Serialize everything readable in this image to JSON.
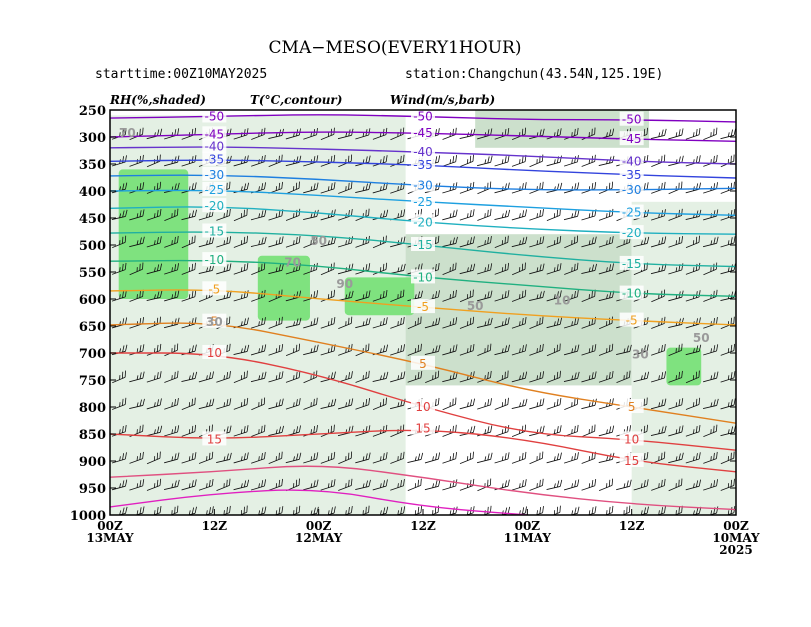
{
  "chart_data": {
    "type": "meteogram",
    "title": "CMA−MESO(EVERY1HOUR)",
    "starttime": "starttime:00Z10MAY2025",
    "station": "station:Changchun(43.54N,125.19E)",
    "variable_labels": [
      "RH(%,shaded)",
      "T(°C,contour)",
      "Wind(m/s,barb)"
    ],
    "y_axis": {
      "levels": [
        250,
        300,
        350,
        400,
        450,
        500,
        550,
        600,
        650,
        700,
        750,
        800,
        850,
        900,
        950,
        1000
      ],
      "tick_labels": [
        "250",
        "300",
        "350",
        "400",
        "450",
        "500",
        "550",
        "600",
        "650",
        "700",
        "750",
        "800",
        "850",
        "900",
        "950",
        "1000"
      ],
      "range": [
        250,
        1000
      ],
      "inverted": true
    },
    "x_axis": {
      "range_hours": [
        0,
        72
      ],
      "reversed": true,
      "ticks": [
        {
          "hour": 72,
          "line1": "00Z",
          "line2": "13MAY",
          "line3": ""
        },
        {
          "hour": 60,
          "line1": "12Z",
          "line2": "",
          "line3": ""
        },
        {
          "hour": 48,
          "line1": "00Z",
          "line2": "12MAY",
          "line3": ""
        },
        {
          "hour": 36,
          "line1": "12Z",
          "line2": "",
          "line3": ""
        },
        {
          "hour": 24,
          "line1": "00Z",
          "line2": "11MAY",
          "line3": ""
        },
        {
          "hour": 12,
          "line1": "12Z",
          "line2": "",
          "line3": ""
        },
        {
          "hour": 0,
          "line1": "00Z",
          "line2": "10MAY",
          "line3": "2025"
        }
      ]
    },
    "rh_shading": {
      "light_color": "#e3efe3",
      "mid_color": "#c9dec9",
      "gray_color": "#a9aea9",
      "high_color": "#7fe27f",
      "light_patches": [
        {
          "hours": [
            72,
            38
          ],
          "levels": [
            260,
            1000
          ]
        },
        {
          "hours": [
            38,
            12
          ],
          "levels": [
            480,
            760
          ]
        },
        {
          "hours": [
            12,
            0
          ],
          "levels": [
            420,
            1000
          ]
        },
        {
          "hours": [
            30,
            10
          ],
          "levels": [
            250,
            320
          ]
        }
      ],
      "high_patches": [
        {
          "hours": [
            71,
            63
          ],
          "levels": [
            360,
            600
          ]
        },
        {
          "hours": [
            55,
            49
          ],
          "levels": [
            520,
            640
          ]
        },
        {
          "hours": [
            45,
            37
          ],
          "levels": [
            560,
            630
          ]
        },
        {
          "hours": [
            8,
            4
          ],
          "levels": [
            690,
            760
          ]
        }
      ]
    },
    "temperature_contours": [
      {
        "label": "-50",
        "color": "#8000c0",
        "points": [
          [
            72,
            265
          ],
          [
            60,
            262
          ],
          [
            48,
            258
          ],
          [
            36,
            262
          ],
          [
            24,
            268
          ],
          [
            12,
            268
          ],
          [
            0,
            272
          ]
        ]
      },
      {
        "label": "-45",
        "color": "#8000c0",
        "points": [
          [
            72,
            300
          ],
          [
            60,
            295
          ],
          [
            48,
            290
          ],
          [
            36,
            293
          ],
          [
            24,
            298
          ],
          [
            12,
            304
          ],
          [
            0,
            308
          ]
        ]
      },
      {
        "label": "-40",
        "color": "#6633cc",
        "points": [
          [
            72,
            320
          ],
          [
            60,
            318
          ],
          [
            48,
            322
          ],
          [
            36,
            328
          ],
          [
            24,
            335
          ],
          [
            12,
            345
          ],
          [
            0,
            350
          ]
        ]
      },
      {
        "label": "-35",
        "color": "#3344dd",
        "points": [
          [
            72,
            345
          ],
          [
            60,
            342
          ],
          [
            48,
            346
          ],
          [
            36,
            352
          ],
          [
            24,
            362
          ],
          [
            12,
            370
          ],
          [
            0,
            376
          ]
        ]
      },
      {
        "label": "-30",
        "color": "#1e7fe0",
        "points": [
          [
            72,
            372
          ],
          [
            60,
            370
          ],
          [
            48,
            378
          ],
          [
            36,
            390
          ],
          [
            24,
            398
          ],
          [
            12,
            398
          ],
          [
            0,
            395
          ]
        ]
      },
      {
        "label": "-25",
        "color": "#1ea0e0",
        "points": [
          [
            72,
            400
          ],
          [
            60,
            398
          ],
          [
            48,
            408
          ],
          [
            36,
            420
          ],
          [
            24,
            430
          ],
          [
            12,
            440
          ],
          [
            0,
            445
          ]
        ]
      },
      {
        "label": "-20",
        "color": "#20b0c0",
        "points": [
          [
            72,
            432
          ],
          [
            60,
            428
          ],
          [
            48,
            440
          ],
          [
            36,
            458
          ],
          [
            24,
            470
          ],
          [
            12,
            478
          ],
          [
            0,
            480
          ]
        ]
      },
      {
        "label": "-15",
        "color": "#20b0a0",
        "points": [
          [
            72,
            478
          ],
          [
            60,
            475
          ],
          [
            48,
            482
          ],
          [
            36,
            500
          ],
          [
            24,
            520
          ],
          [
            12,
            535
          ],
          [
            0,
            540
          ]
        ]
      },
      {
        "label": "-10",
        "color": "#20b080",
        "points": [
          [
            72,
            530
          ],
          [
            60,
            528
          ],
          [
            48,
            538
          ],
          [
            36,
            560
          ],
          [
            24,
            575
          ],
          [
            12,
            590
          ],
          [
            0,
            595
          ]
        ]
      },
      {
        "label": "-5",
        "color": "#f0a020",
        "points": [
          [
            72,
            585
          ],
          [
            60,
            582
          ],
          [
            48,
            600
          ],
          [
            36,
            615
          ],
          [
            24,
            630
          ],
          [
            12,
            640
          ],
          [
            0,
            648
          ]
        ]
      },
      {
        "label": "5",
        "color": "#e08020",
        "points": [
          [
            72,
            648
          ],
          [
            60,
            642
          ],
          [
            48,
            680
          ],
          [
            36,
            720
          ],
          [
            24,
            770
          ],
          [
            12,
            800
          ],
          [
            0,
            830
          ]
        ]
      },
      {
        "label": "10",
        "color": "#e04040",
        "points": [
          [
            72,
            700
          ],
          [
            60,
            700
          ],
          [
            48,
            740
          ],
          [
            36,
            800
          ],
          [
            24,
            850
          ],
          [
            12,
            860
          ],
          [
            0,
            880
          ]
        ]
      },
      {
        "label": "15",
        "color": "#e04040",
        "points": [
          [
            72,
            850
          ],
          [
            60,
            860
          ],
          [
            48,
            850
          ],
          [
            36,
            840
          ],
          [
            24,
            860
          ],
          [
            12,
            900
          ],
          [
            0,
            920
          ]
        ]
      },
      {
        "label": "",
        "color": "#e05080",
        "points": [
          [
            72,
            930
          ],
          [
            60,
            920
          ],
          [
            48,
            905
          ],
          [
            36,
            930
          ],
          [
            24,
            960
          ],
          [
            12,
            980
          ],
          [
            0,
            990
          ]
        ]
      },
      {
        "label": "",
        "color": "#e020c0",
        "points": [
          [
            72,
            985
          ],
          [
            60,
            960
          ],
          [
            48,
            950
          ],
          [
            36,
            985
          ],
          [
            24,
            1000
          ]
        ]
      }
    ],
    "rh_labels": [
      {
        "label": "70",
        "hour": 70,
        "level": 300
      },
      {
        "label": "50",
        "hour": 48,
        "level": 500
      },
      {
        "label": "70",
        "hour": 51,
        "level": 540
      },
      {
        "label": "90",
        "hour": 45,
        "level": 580
      },
      {
        "label": "30",
        "hour": 60,
        "level": 650
      },
      {
        "label": "50",
        "hour": 30,
        "level": 620
      },
      {
        "label": "10",
        "hour": 20,
        "level": 610
      },
      {
        "label": "50",
        "hour": 4,
        "level": 680
      },
      {
        "label": "30",
        "hour": 11,
        "level": 710
      }
    ],
    "grid": false
  }
}
